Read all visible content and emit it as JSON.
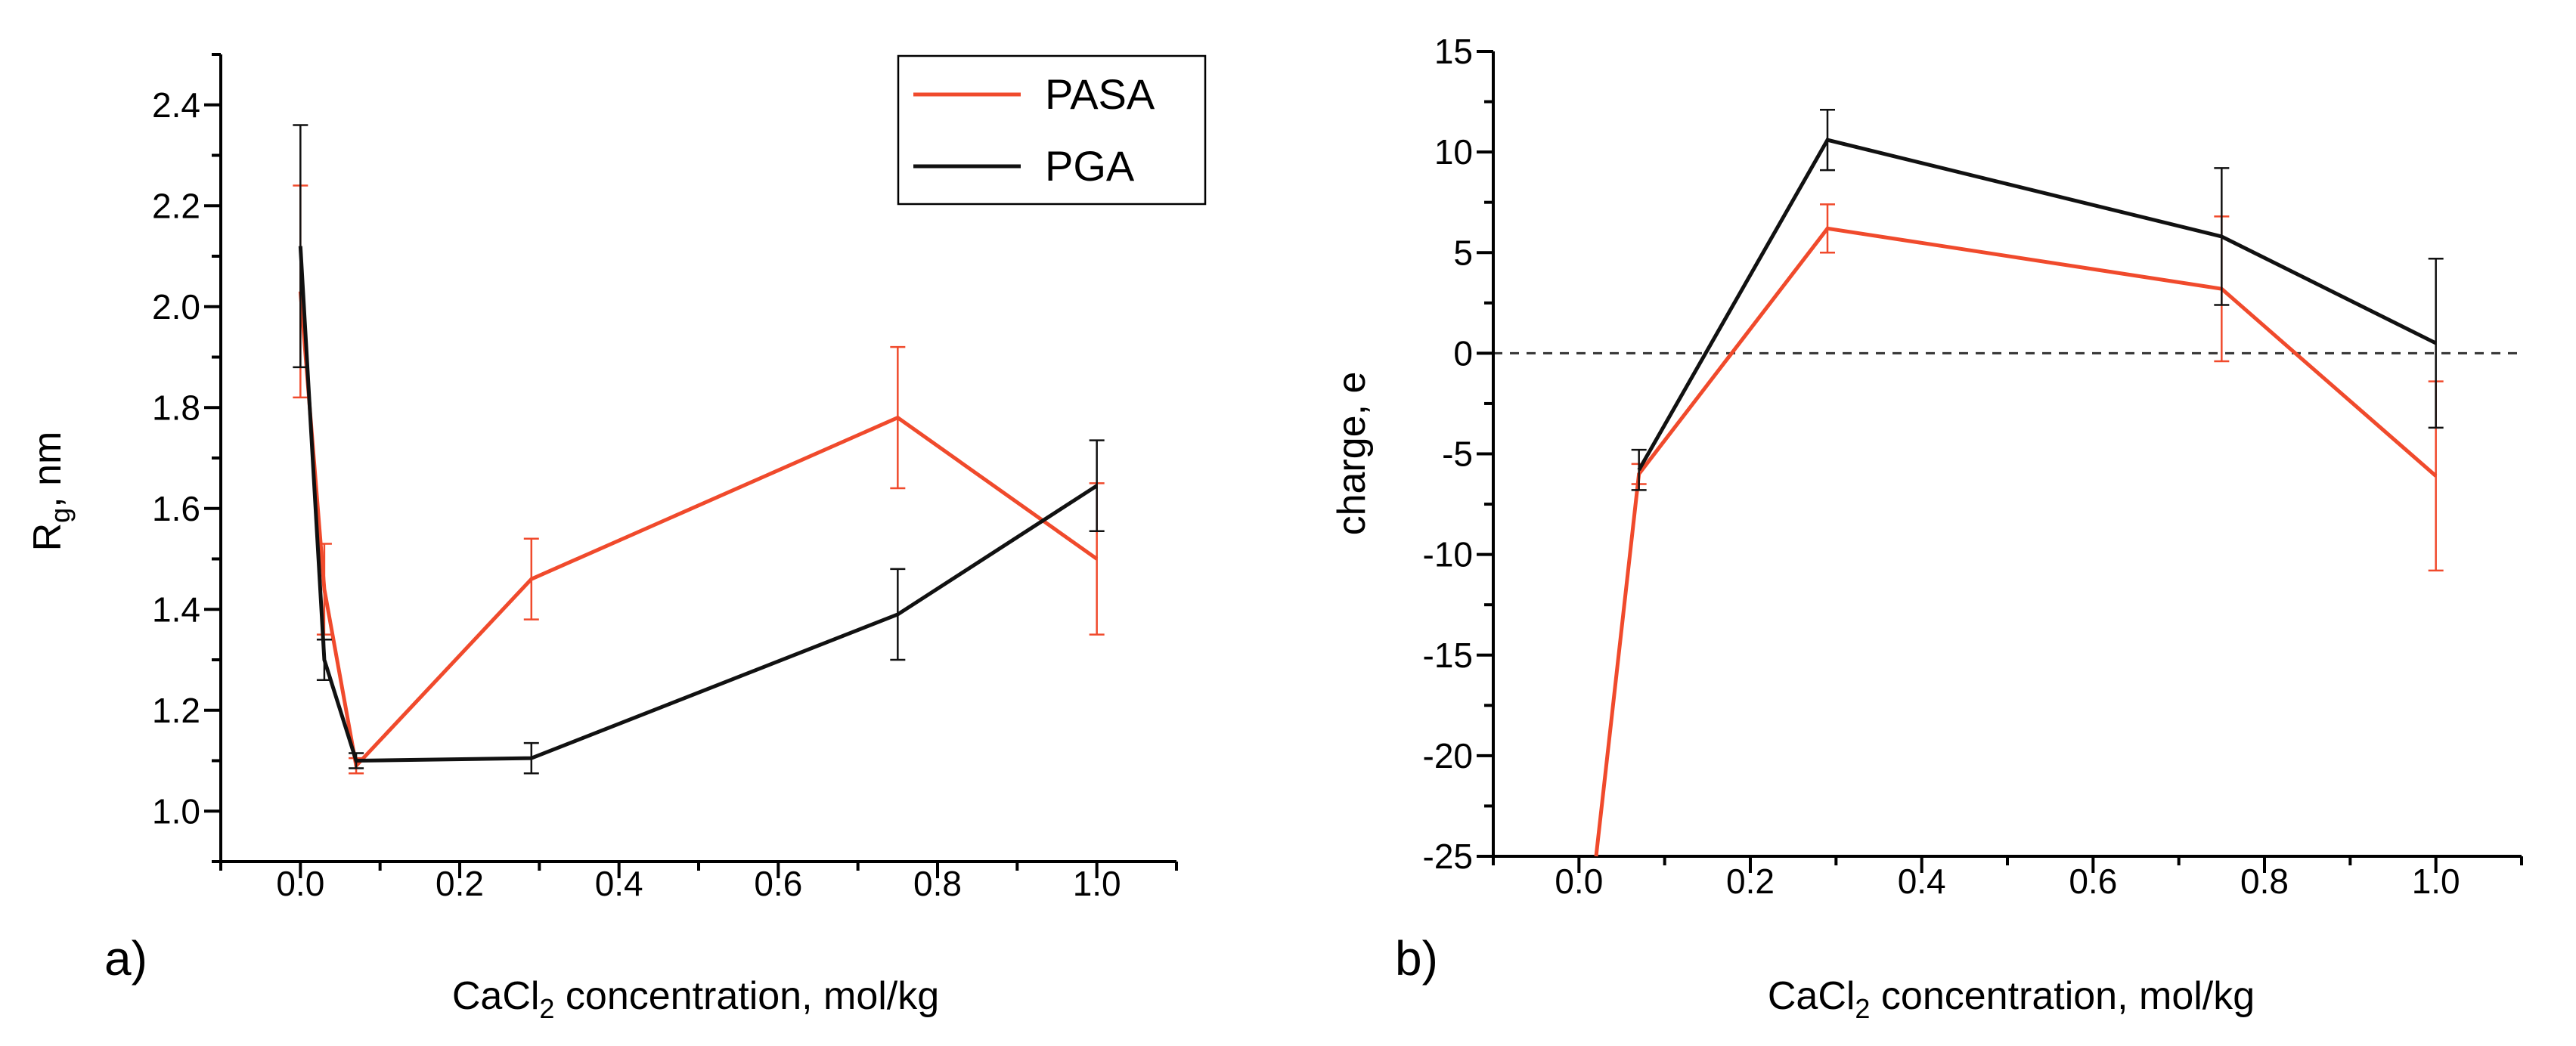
{
  "chart_data": [
    {
      "type": "line",
      "panel_label": "a)",
      "xlabel": {
        "main": "CaCl",
        "sub": "2",
        "rest": " concentration, mol/kg"
      },
      "ylabel": {
        "main": "R",
        "sub": "g",
        "rest": ", nm"
      },
      "xlim": [
        -0.1,
        1.1
      ],
      "ylim": [
        0.9,
        2.5
      ],
      "xticks": [
        0.0,
        0.2,
        0.4,
        0.6,
        0.8,
        1.0
      ],
      "xtick_labels": [
        "0.0",
        "0.2",
        "0.4",
        "0.6",
        "0.8",
        "1.0"
      ],
      "yticks": [
        1.0,
        1.2,
        1.4,
        1.6,
        1.8,
        2.0,
        2.2,
        2.4
      ],
      "ytick_labels": [
        "1.0",
        "1.2",
        "1.4",
        "1.6",
        "1.8",
        "2.0",
        "2.2",
        "2.4"
      ],
      "legend": {
        "position": "top-right",
        "entries": [
          "PASA",
          "PGA"
        ]
      },
      "series": [
        {
          "name": "PASA",
          "color": "#f04a2c",
          "x": [
            0.0,
            0.03,
            0.07,
            0.29,
            0.75,
            1.0
          ],
          "y": [
            2.03,
            1.44,
            1.09,
            1.46,
            1.78,
            1.5
          ],
          "err": [
            0.21,
            0.09,
            0.015,
            0.08,
            0.14,
            0.15
          ]
        },
        {
          "name": "PGA",
          "color": "#111111",
          "x": [
            0.0,
            0.03,
            0.07,
            0.29,
            0.75,
            1.0
          ],
          "y": [
            2.12,
            1.3,
            1.1,
            1.105,
            1.39,
            1.645
          ],
          "err": [
            0.24,
            0.04,
            0.015,
            0.03,
            0.09,
            0.09
          ]
        }
      ]
    },
    {
      "type": "line",
      "panel_label": "b)",
      "xlabel": {
        "main": "CaCl",
        "sub": "2",
        "rest": " concentration, mol/kg"
      },
      "ylabel": {
        "main": "charge, e",
        "sub": "",
        "rest": ""
      },
      "xlim": [
        -0.1,
        1.1
      ],
      "ylim": [
        -25,
        15
      ],
      "xticks": [
        0.0,
        0.2,
        0.4,
        0.6,
        0.8,
        1.0
      ],
      "xtick_labels": [
        "0.0",
        "0.2",
        "0.4",
        "0.6",
        "0.8",
        "1.0"
      ],
      "yticks": [
        -25,
        -20,
        -15,
        -10,
        -5,
        0,
        5,
        10,
        15
      ],
      "ytick_labels": [
        "-25",
        "-20",
        "-15",
        "-10",
        "-5",
        "0",
        "5",
        "10",
        "15"
      ],
      "reference_line": 0,
      "series": [
        {
          "name": "PASA",
          "color": "#f04a2c",
          "x": [
            0.02,
            0.07,
            0.29,
            0.75,
            1.0
          ],
          "y": [
            -25,
            -6.0,
            6.2,
            3.2,
            -6.1
          ],
          "err": [
            0,
            0.5,
            1.2,
            3.6,
            4.7
          ]
        },
        {
          "name": "PGA",
          "color": "#111111",
          "x": [
            0.07,
            0.29,
            0.75,
            1.0
          ],
          "y": [
            -5.8,
            10.6,
            5.8,
            0.5
          ],
          "err": [
            1.0,
            1.5,
            3.4,
            4.2
          ]
        }
      ]
    }
  ]
}
